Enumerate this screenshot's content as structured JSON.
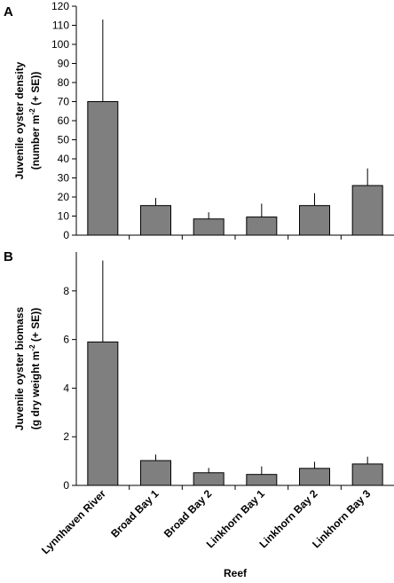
{
  "chart_data": [
    {
      "type": "bar",
      "panel_label": "A",
      "categories": [
        "Lynnhaven River",
        "Broad Bay 1",
        "Broad Bay 2",
        "Linkhorn Bay 1",
        "Linkhorn Bay 2",
        "Linkhorn Bay 3"
      ],
      "values": [
        70,
        15.5,
        8.5,
        9.5,
        15.5,
        26
      ],
      "errors": [
        43,
        4,
        3.5,
        7,
        6.5,
        9
      ],
      "ylabel_line1": "Juvenile oyster density",
      "ylabel_line2_pre": "(number m",
      "ylabel_sup": "-2",
      "ylabel_line2_post": " (+ SE))",
      "ylim": [
        0,
        120
      ],
      "yticks": [
        0,
        10,
        20,
        30,
        40,
        50,
        60,
        70,
        80,
        90,
        100,
        110,
        120
      ],
      "bar_color": "#7f7f7f"
    },
    {
      "type": "bar",
      "panel_label": "B",
      "categories": [
        "Lynnhaven River",
        "Broad Bay 1",
        "Broad Bay 2",
        "Linkhorn Bay 1",
        "Linkhorn Bay 2",
        "Linkhorn Bay 3"
      ],
      "values": [
        5.9,
        1.02,
        0.52,
        0.45,
        0.7,
        0.88
      ],
      "errors": [
        3.35,
        0.25,
        0.2,
        0.33,
        0.27,
        0.3
      ],
      "ylabel_line1": "Juvenile oyster biomass",
      "ylabel_line2_pre": "(g dry weight m",
      "ylabel_sup": "-2",
      "ylabel_line2_post": " (+ SE))",
      "ylim": [
        0,
        9.6
      ],
      "yticks": [
        0,
        2,
        4,
        6,
        8
      ],
      "bar_color": "#7f7f7f"
    }
  ],
  "shared": {
    "xlabel": "Reef"
  }
}
